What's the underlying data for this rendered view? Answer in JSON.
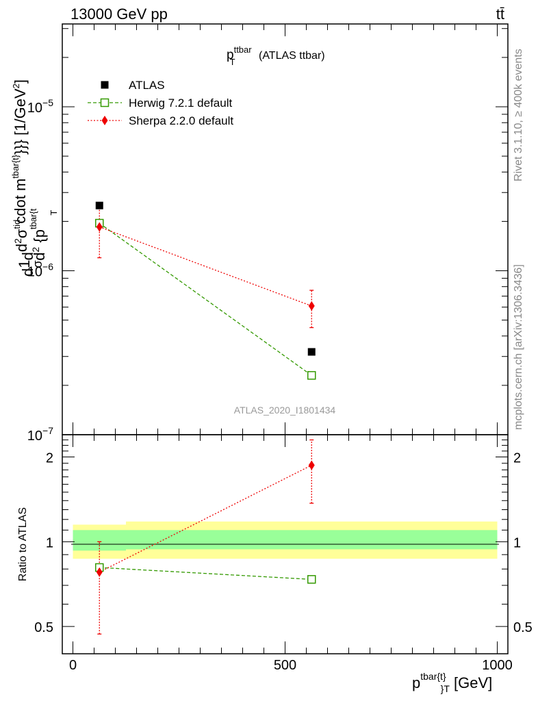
{
  "header": {
    "left": "13000 GeV pp",
    "right": "tt̄"
  },
  "side_labels": {
    "rivet": "Rivet 3.1.10, ≥ 400k events",
    "mcplots": "mcplots.cern.ch [arXiv:1306.3436]"
  },
  "chart_data": [
    {
      "type": "scatter",
      "title_main": "p",
      "title_sub": "T",
      "title_sup": "ttbar",
      "title_rest": " (ATLAS ttbar)",
      "ylabel": "d1/σd d²σ^tid / d² {p^tbar{t} T cdot m^tbar{t}}} [1/GeV²]",
      "ylabel_parts": {
        "d": "d",
        "frac_num": "1",
        "frac_den": "σ",
        "d2": "d",
        "num": "d",
        "num_sup": "2",
        "num_sym": "σ",
        "num_sym_sup": "tid",
        "den": "d",
        "den_sup": "2",
        "den_rest": " {p",
        "den_rest_sup": "tbar{t",
        "den_rest_sub": "T",
        "tail": "cdot m",
        "tail_sup": "tbar{t}",
        "tail_end": "}}} [1/GeV",
        "tail_end_sup": "2",
        "tail_close": "]"
      },
      "yscale": "log",
      "ylim": [
        1e-07,
        3.2e-05
      ],
      "y_ticks": [
        {
          "value": 1e-07,
          "label": "10",
          "exp": "−7"
        },
        {
          "value": 1e-06,
          "label": "10",
          "exp": "−6"
        },
        {
          "value": 1e-05,
          "label": "10",
          "exp": "−5"
        }
      ],
      "xlim": [
        -25,
        1025
      ],
      "watermark": "ATLAS_2020_I1801434",
      "legend_position": "top-left",
      "series": [
        {
          "name": "ATLAS",
          "color": "#000000",
          "marker": "filled-square",
          "x": [
            62.5,
            562.5
          ],
          "y": [
            2.5e-06,
            3.2e-07
          ]
        },
        {
          "name": "Herwig 7.2.1 default",
          "color": "#339900",
          "marker": "open-square",
          "line": "dashed",
          "x": [
            62.5,
            562.5
          ],
          "y": [
            1.95e-06,
            2.3e-07
          ]
        },
        {
          "name": "Sherpa 2.2.0 default",
          "color": "#ee0000",
          "marker": "diamond",
          "line": "dotted",
          "x": [
            62.5,
            562.5
          ],
          "y": [
            1.85e-06,
            6.1e-07
          ],
          "yerr_low": [
            1.2e-06,
            4.5e-07
          ],
          "yerr_high": [
            2.4e-06,
            7.6e-07
          ]
        }
      ]
    },
    {
      "type": "scatter",
      "ylabel": "Ratio to ATLAS",
      "xlabel_main": "p",
      "xlabel_sup": "tbar{t}",
      "xlabel_sub": "}",
      "xlabel_sub2": "T",
      "xlabel_unit": " [GeV]",
      "yscale": "log",
      "ylim": [
        0.4,
        2.4
      ],
      "y_ticks": [
        {
          "value": 0.5,
          "label": "0.5"
        },
        {
          "value": 1,
          "label": "1"
        },
        {
          "value": 2,
          "label": "2"
        }
      ],
      "xlim": [
        -25,
        1025
      ],
      "x_ticks": [
        {
          "value": 0,
          "label": "0"
        },
        {
          "value": 500,
          "label": "500"
        },
        {
          "value": 1000,
          "label": "1000"
        }
      ],
      "bands": [
        {
          "name": "stat",
          "color": "#99ff99",
          "bins": [
            [
              0,
              125,
              0.93,
              1.1
            ],
            [
              125,
              1000,
              0.94,
              1.1
            ]
          ]
        },
        {
          "name": "total",
          "color": "#ffff99",
          "bins": [
            [
              0,
              125,
              0.87,
              1.15
            ],
            [
              125,
              1000,
              0.87,
              1.18
            ]
          ]
        }
      ],
      "series": [
        {
          "name": "Herwig 7.2.1 default",
          "color": "#339900",
          "marker": "open-square",
          "line": "dashed",
          "x": [
            62.5,
            562.5
          ],
          "y": [
            0.81,
            0.735
          ]
        },
        {
          "name": "Sherpa 2.2.0 default",
          "color": "#ee0000",
          "marker": "diamond",
          "line": "dotted",
          "x": [
            62.5,
            562.5
          ],
          "y": [
            0.78,
            1.87
          ],
          "yerr_low": [
            0.47,
            1.37
          ],
          "yerr_high": [
            1.0,
            2.3
          ]
        }
      ]
    }
  ]
}
